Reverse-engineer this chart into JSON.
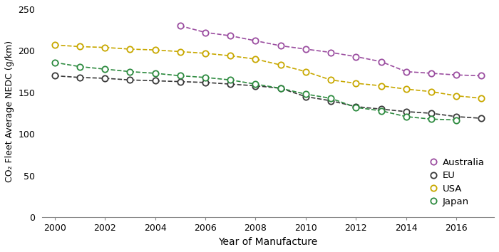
{
  "years": [
    2000,
    2001,
    2002,
    2003,
    2004,
    2005,
    2006,
    2007,
    2008,
    2009,
    2010,
    2011,
    2012,
    2013,
    2014,
    2015,
    2016,
    2017
  ],
  "australia": [
    null,
    null,
    null,
    null,
    null,
    230,
    222,
    218,
    212,
    206,
    202,
    198,
    193,
    187,
    175,
    173,
    171,
    170
  ],
  "eu": [
    170,
    168,
    167,
    165,
    164,
    163,
    162,
    160,
    158,
    155,
    145,
    140,
    133,
    130,
    127,
    125,
    121,
    119
  ],
  "usa": [
    207,
    205,
    204,
    202,
    201,
    199,
    197,
    194,
    190,
    183,
    175,
    165,
    161,
    158,
    154,
    151,
    146,
    143
  ],
  "japan": [
    186,
    181,
    178,
    175,
    173,
    170,
    168,
    165,
    160,
    155,
    148,
    143,
    132,
    128,
    121,
    118,
    117,
    null
  ],
  "australia_color": "#9B4EA0",
  "eu_color": "#3a3a3a",
  "usa_color": "#C8A800",
  "japan_color": "#2E8B40",
  "xlabel": "Year of Manufacture",
  "ylabel": "CO₂ Fleet Average NEDC (g/km)",
  "ylim": [
    0,
    255
  ],
  "xlim": [
    1999.5,
    2017.5
  ],
  "yticks": [
    0,
    50,
    100,
    150,
    200,
    250
  ],
  "xticks": [
    2000,
    2002,
    2004,
    2006,
    2008,
    2010,
    2012,
    2014,
    2016
  ],
  "legend_labels": [
    "Australia",
    "EU",
    "USA",
    "Japan"
  ],
  "marker_size": 6,
  "line_width": 1.2
}
